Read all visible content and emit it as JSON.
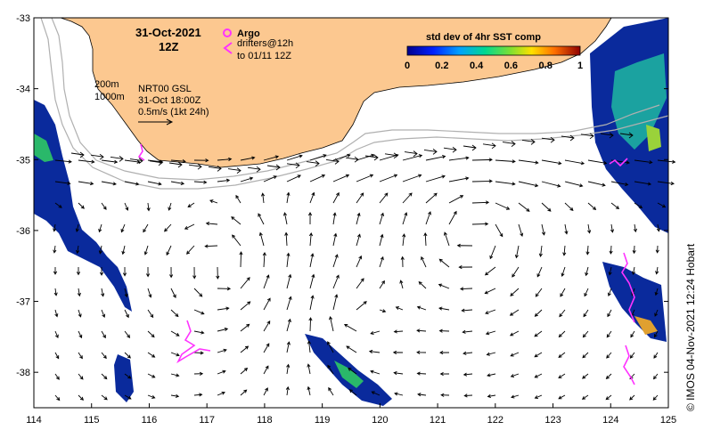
{
  "map": {
    "date_title": "31-Oct-2021",
    "date_time": "12Z",
    "argo_label": "Argo",
    "drifters_line1": "drifters@12h",
    "drifters_line2": "to 01/11 12Z",
    "depth_200": "200m",
    "depth_1000": "1000m",
    "product": "NRT00 GSL",
    "product_time": "31-Oct 18:00Z",
    "speed_ref": "0.5m/s (1kt 24h)",
    "colorbar_title": "std dev of 4hr SST comp",
    "colorbar_ticks": [
      "0",
      "0.2",
      "0.4",
      "0.6",
      "0.8",
      "1"
    ],
    "x_ticks": [
      "114",
      "115",
      "116",
      "117",
      "118",
      "119",
      "120",
      "121",
      "122",
      "123",
      "124",
      "125"
    ],
    "y_ticks": [
      "-33",
      "-34",
      "-35",
      "-36",
      "-37",
      "-38"
    ],
    "credit": "©  IMOS 04-Nov-2021 12:24 Hobart",
    "colors": {
      "land": "#fcc890",
      "argo_drifter": "#ff33ff",
      "sst_low": "#00008c",
      "sst_mid": "#00c864",
      "sst_high": "#ff0000"
    }
  }
}
